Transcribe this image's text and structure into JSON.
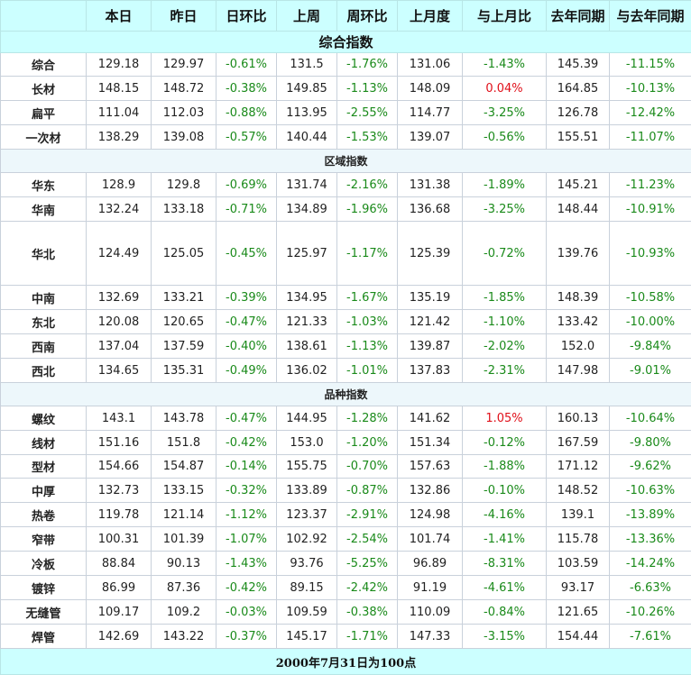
{
  "colors": {
    "header_bg": "#ccffff",
    "section_bg": "#edf7fb",
    "negative": "#1a8a1a",
    "positive": "#e0101a"
  },
  "headers": [
    "",
    "本日",
    "昨日",
    "日环比",
    "上周",
    "周环比",
    "上月度",
    "与上月比",
    "去年同期",
    "与去年同期"
  ],
  "sections": [
    {
      "title": "综合指数",
      "rows": [
        [
          "综合",
          "129.18",
          "129.97",
          "-0.61%",
          "131.5",
          "-1.76%",
          "131.06",
          "-1.43%",
          "145.39",
          "-11.15%"
        ],
        [
          "长材",
          "148.15",
          "148.72",
          "-0.38%",
          "149.85",
          "-1.13%",
          "148.09",
          "0.04%",
          "164.85",
          "-10.13%"
        ],
        [
          "扁平",
          "111.04",
          "112.03",
          "-0.88%",
          "113.95",
          "-2.55%",
          "114.77",
          "-3.25%",
          "126.78",
          "-12.42%"
        ],
        [
          "一次材",
          "138.29",
          "139.08",
          "-0.57%",
          "140.44",
          "-1.53%",
          "139.07",
          "-0.56%",
          "155.51",
          "-11.07%"
        ]
      ]
    },
    {
      "title": "区域指数",
      "rows": [
        [
          "华东",
          "128.9",
          "129.8",
          "-0.69%",
          "131.74",
          "-2.16%",
          "131.38",
          "-1.89%",
          "145.21",
          "-11.23%"
        ],
        [
          "华南",
          "132.24",
          "133.18",
          "-0.71%",
          "134.89",
          "-1.96%",
          "136.68",
          "-3.25%",
          "148.44",
          "-10.91%"
        ],
        [
          "华北",
          "124.49",
          "125.05",
          "-0.45%",
          "125.97",
          "-1.17%",
          "125.39",
          "-0.72%",
          "139.76",
          "-10.93%"
        ],
        [
          "中南",
          "132.69",
          "133.21",
          "-0.39%",
          "134.95",
          "-1.67%",
          "135.19",
          "-1.85%",
          "148.39",
          "-10.58%"
        ],
        [
          "东北",
          "120.08",
          "120.65",
          "-0.47%",
          "121.33",
          "-1.03%",
          "121.42",
          "-1.10%",
          "133.42",
          "-10.00%"
        ],
        [
          "西南",
          "137.04",
          "137.59",
          "-0.40%",
          "138.61",
          "-1.13%",
          "139.87",
          "-2.02%",
          "152.0",
          "-9.84%"
        ],
        [
          "西北",
          "134.65",
          "135.31",
          "-0.49%",
          "136.02",
          "-1.01%",
          "137.83",
          "-2.31%",
          "147.98",
          "-9.01%"
        ]
      ]
    },
    {
      "title": "品种指数",
      "rows": [
        [
          "螺纹",
          "143.1",
          "143.78",
          "-0.47%",
          "144.95",
          "-1.28%",
          "141.62",
          "1.05%",
          "160.13",
          "-10.64%"
        ],
        [
          "线材",
          "151.16",
          "151.8",
          "-0.42%",
          "153.0",
          "-1.20%",
          "151.34",
          "-0.12%",
          "167.59",
          "-9.80%"
        ],
        [
          "型材",
          "154.66",
          "154.87",
          "-0.14%",
          "155.75",
          "-0.70%",
          "157.63",
          "-1.88%",
          "171.12",
          "-9.62%"
        ],
        [
          "中厚",
          "132.73",
          "133.15",
          "-0.32%",
          "133.89",
          "-0.87%",
          "132.86",
          "-0.10%",
          "148.52",
          "-10.63%"
        ],
        [
          "热卷",
          "119.78",
          "121.14",
          "-1.12%",
          "123.37",
          "-2.91%",
          "124.98",
          "-4.16%",
          "139.1",
          "-13.89%"
        ],
        [
          "窄带",
          "100.31",
          "101.39",
          "-1.07%",
          "102.92",
          "-2.54%",
          "101.74",
          "-1.41%",
          "115.78",
          "-13.36%"
        ],
        [
          "冷板",
          "88.84",
          "90.13",
          "-1.43%",
          "93.76",
          "-5.25%",
          "96.89",
          "-8.31%",
          "103.59",
          "-14.24%"
        ],
        [
          "镀锌",
          "86.99",
          "87.36",
          "-0.42%",
          "89.15",
          "-2.42%",
          "91.19",
          "-4.61%",
          "93.17",
          "-6.63%"
        ],
        [
          "无缝管",
          "109.17",
          "109.2",
          "-0.03%",
          "109.59",
          "-0.38%",
          "110.09",
          "-0.84%",
          "121.65",
          "-10.26%"
        ],
        [
          "焊管",
          "142.69",
          "143.22",
          "-0.37%",
          "145.17",
          "-1.71%",
          "147.33",
          "-3.15%",
          "154.44",
          "-7.61%"
        ]
      ]
    }
  ],
  "footer": "2000年7月31日为100点"
}
